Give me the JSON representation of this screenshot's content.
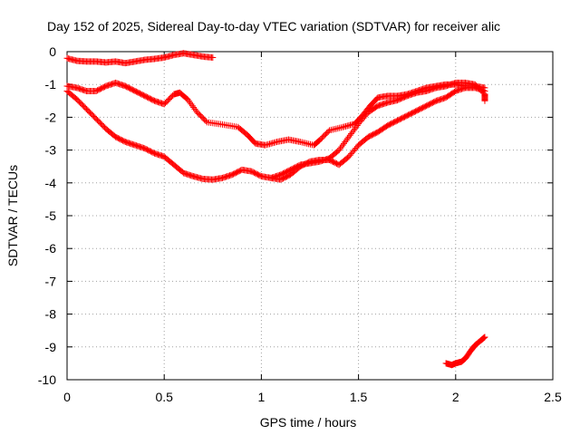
{
  "chart_data": {
    "type": "scatter",
    "title": "Day 152 of 2025, Sidereal Day-to-day VTEC variation (SDTVAR) for receiver alic",
    "xlabel": "GPS time / hours",
    "ylabel": "SDTVAR / TECUs",
    "xlim": [
      0,
      2.5
    ],
    "ylim": [
      -10,
      0
    ],
    "xticks": [
      0,
      0.5,
      1,
      1.5,
      2,
      2.5
    ],
    "xtick_labels": [
      "0",
      "0.5",
      "1",
      "1.5",
      "2",
      "2.5"
    ],
    "yticks": [
      0,
      -1,
      -2,
      -3,
      -4,
      -5,
      -6,
      -7,
      -8,
      -9,
      -10
    ],
    "ytick_labels": [
      "0",
      "-1",
      "-2",
      "-3",
      "-4",
      "-5",
      "-6",
      "-7",
      "-8",
      "-9",
      "-10"
    ],
    "grid": true,
    "marker": "+",
    "color": "#ff0000",
    "series": [
      {
        "name": "top",
        "points": [
          [
            0.0,
            -0.2
          ],
          [
            0.05,
            -0.28
          ],
          [
            0.1,
            -0.3
          ],
          [
            0.15,
            -0.3
          ],
          [
            0.2,
            -0.33
          ],
          [
            0.25,
            -0.3
          ],
          [
            0.3,
            -0.35
          ],
          [
            0.35,
            -0.3
          ],
          [
            0.4,
            -0.25
          ],
          [
            0.45,
            -0.22
          ],
          [
            0.5,
            -0.18
          ],
          [
            0.55,
            -0.1
          ],
          [
            0.6,
            -0.05
          ],
          [
            0.65,
            -0.1
          ],
          [
            0.7,
            -0.15
          ],
          [
            0.75,
            -0.18
          ]
        ]
      },
      {
        "name": "upper",
        "points": [
          [
            0.0,
            -1.05
          ],
          [
            0.05,
            -1.1
          ],
          [
            0.1,
            -1.2
          ],
          [
            0.15,
            -1.2
          ],
          [
            0.2,
            -1.05
          ],
          [
            0.25,
            -0.95
          ],
          [
            0.3,
            -1.05
          ],
          [
            0.35,
            -1.2
          ],
          [
            0.4,
            -1.35
          ],
          [
            0.45,
            -1.5
          ],
          [
            0.5,
            -1.6
          ],
          [
            0.55,
            -1.3
          ],
          [
            0.58,
            -1.25
          ],
          [
            0.62,
            -1.45
          ],
          [
            0.67,
            -1.85
          ],
          [
            0.72,
            -2.15
          ],
          [
            0.8,
            -2.22
          ],
          [
            0.88,
            -2.3
          ],
          [
            0.93,
            -2.55
          ],
          [
            0.97,
            -2.8
          ],
          [
            1.02,
            -2.85
          ],
          [
            1.08,
            -2.75
          ],
          [
            1.14,
            -2.68
          ],
          [
            1.2,
            -2.75
          ],
          [
            1.27,
            -2.85
          ],
          [
            1.3,
            -2.7
          ],
          [
            1.35,
            -2.4
          ],
          [
            1.42,
            -2.3
          ],
          [
            1.48,
            -2.2
          ],
          [
            1.52,
            -1.95
          ],
          [
            1.56,
            -1.65
          ],
          [
            1.6,
            -1.4
          ],
          [
            1.65,
            -1.35
          ],
          [
            1.7,
            -1.35
          ],
          [
            1.75,
            -1.3
          ],
          [
            1.8,
            -1.2
          ],
          [
            1.85,
            -1.1
          ],
          [
            1.9,
            -1.05
          ],
          [
            1.95,
            -1.0
          ],
          [
            2.0,
            -1.0
          ],
          [
            2.05,
            -1.05
          ],
          [
            2.1,
            -1.05
          ],
          [
            2.15,
            -1.1
          ]
        ]
      },
      {
        "name": "lower",
        "points": [
          [
            0.0,
            -1.2
          ],
          [
            0.05,
            -1.45
          ],
          [
            0.1,
            -1.75
          ],
          [
            0.15,
            -2.05
          ],
          [
            0.2,
            -2.35
          ],
          [
            0.25,
            -2.6
          ],
          [
            0.3,
            -2.75
          ],
          [
            0.35,
            -2.85
          ],
          [
            0.4,
            -2.95
          ],
          [
            0.45,
            -3.1
          ],
          [
            0.5,
            -3.2
          ],
          [
            0.55,
            -3.45
          ],
          [
            0.6,
            -3.7
          ],
          [
            0.65,
            -3.8
          ],
          [
            0.7,
            -3.88
          ],
          [
            0.75,
            -3.9
          ],
          [
            0.8,
            -3.85
          ],
          [
            0.85,
            -3.75
          ],
          [
            0.9,
            -3.6
          ],
          [
            0.95,
            -3.65
          ],
          [
            1.0,
            -3.8
          ],
          [
            1.05,
            -3.85
          ],
          [
            1.1,
            -3.9
          ],
          [
            1.15,
            -3.75
          ],
          [
            1.2,
            -3.5
          ],
          [
            1.25,
            -3.35
          ],
          [
            1.3,
            -3.3
          ],
          [
            1.35,
            -3.3
          ],
          [
            1.4,
            -3.45
          ],
          [
            1.45,
            -3.2
          ],
          [
            1.5,
            -2.85
          ],
          [
            1.55,
            -2.6
          ],
          [
            1.6,
            -2.45
          ],
          [
            1.65,
            -2.25
          ],
          [
            1.7,
            -2.1
          ],
          [
            1.75,
            -1.95
          ],
          [
            1.8,
            -1.8
          ],
          [
            1.85,
            -1.65
          ],
          [
            1.9,
            -1.5
          ],
          [
            1.95,
            -1.4
          ],
          [
            2.0,
            -1.2
          ],
          [
            2.05,
            -1.1
          ],
          [
            2.1,
            -1.1
          ],
          [
            2.15,
            -1.2
          ]
        ]
      },
      {
        "name": "middle",
        "points": [
          [
            1.05,
            -3.85
          ],
          [
            1.1,
            -3.75
          ],
          [
            1.15,
            -3.6
          ],
          [
            1.2,
            -3.45
          ],
          [
            1.25,
            -3.4
          ],
          [
            1.3,
            -3.35
          ],
          [
            1.35,
            -3.25
          ],
          [
            1.4,
            -3.0
          ],
          [
            1.45,
            -2.6
          ],
          [
            1.5,
            -2.2
          ],
          [
            1.55,
            -1.85
          ],
          [
            1.6,
            -1.65
          ],
          [
            1.65,
            -1.55
          ],
          [
            1.7,
            -1.48
          ],
          [
            1.75,
            -1.35
          ],
          [
            1.8,
            -1.25
          ],
          [
            1.85,
            -1.2
          ],
          [
            1.9,
            -1.1
          ],
          [
            1.95,
            -1.05
          ],
          [
            2.0,
            -0.95
          ],
          [
            2.05,
            -0.95
          ],
          [
            2.1,
            -1.0
          ],
          [
            2.15,
            -1.3
          ],
          [
            2.15,
            -1.5
          ]
        ]
      },
      {
        "name": "bottom",
        "points": [
          [
            1.95,
            -9.5
          ],
          [
            1.98,
            -9.55
          ],
          [
            2.0,
            -9.5
          ],
          [
            2.03,
            -9.45
          ],
          [
            2.05,
            -9.35
          ],
          [
            2.08,
            -9.1
          ],
          [
            2.1,
            -8.95
          ],
          [
            2.13,
            -8.8
          ],
          [
            2.15,
            -8.7
          ]
        ]
      }
    ]
  }
}
